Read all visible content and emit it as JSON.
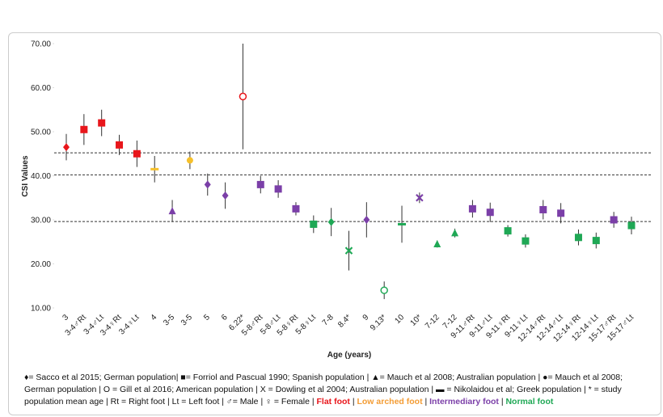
{
  "chart_data": {
    "type": "errorbar-dot",
    "y_label": "CSI Values",
    "x_label": "Age (years)",
    "ylim": [
      10,
      70
    ],
    "yticks": [
      {
        "value": 10,
        "label": "10.00"
      },
      {
        "value": 20,
        "label": "20.00"
      },
      {
        "value": 30,
        "label": "30.00"
      },
      {
        "value": 40,
        "label": "40.00"
      },
      {
        "value": 50,
        "label": "50.00"
      },
      {
        "value": 60,
        "label": "60.00"
      },
      {
        "value": 70,
        "label": "70.00"
      }
    ],
    "reference_lines": [
      45.2,
      40.2,
      29.6
    ],
    "categories": [
      "3",
      "3-4♂Rt",
      "3-4♂Lt",
      "3-4♀Rt",
      "3-4♀Lt",
      "4",
      "3-5",
      "3-5",
      "5",
      "6",
      "6.22*",
      "5-8♂Rt",
      "5-8♂Lt",
      "5-8♀Rt",
      "5-8♀Lt",
      "7-8",
      "8.4*",
      "9",
      "9.13*",
      "10",
      "10*",
      "7-12",
      "7-12",
      "9-11♂Rt",
      "9-11♂Lt",
      "9-11♀Rt",
      "9-11♀Lt",
      "12-14♂Rt",
      "12-14♂Lt",
      "12-14♀Rt",
      "12-14♀Lt",
      "15-17♂Rt",
      "15-17♂Lt"
    ],
    "values": [
      46.5,
      50.5,
      52,
      47,
      45,
      41.5,
      32,
      43.5,
      38,
      35.5,
      58,
      38,
      37,
      32.5,
      29,
      29.5,
      23,
      30,
      14,
      29,
      35,
      24.5,
      27,
      32.5,
      31.7,
      27.5,
      25.2,
      32.3,
      31.5,
      26,
      25.3,
      30,
      28.7
    ],
    "errors": [
      3,
      3.5,
      3,
      2.3,
      3,
      3,
      2.5,
      2,
      2.5,
      3,
      12,
      2,
      2,
      1.5,
      2,
      3.2,
      4.5,
      4,
      2,
      4.2,
      1.2,
      0.8,
      1,
      2,
      2.2,
      1.3,
      1.5,
      2.2,
      2.3,
      1.8,
      1.8,
      1.8,
      2
    ],
    "markers": [
      "diamond",
      "square",
      "square",
      "square",
      "square",
      "dash",
      "triangle",
      "circle",
      "diamond",
      "diamond",
      "open-circle",
      "square",
      "square",
      "square",
      "square",
      "diamond",
      "x",
      "diamond",
      "open-circle",
      "dash",
      "x",
      "triangle",
      "triangle",
      "square",
      "square",
      "square",
      "square",
      "square",
      "square",
      "square",
      "square",
      "square",
      "square"
    ],
    "colors": [
      "#e8161b",
      "#e8161b",
      "#e8161b",
      "#e8161b",
      "#e8161b",
      "#f6c02a",
      "#7b3fa8",
      "#f6c02a",
      "#7b3fa8",
      "#7b3fa8",
      "#e8161b",
      "#7b3fa8",
      "#7b3fa8",
      "#7b3fa8",
      "#1fa855",
      "#1fa855",
      "#1fa855",
      "#7b3fa8",
      "#1fa855",
      "#1fa855",
      "#7b3fa8",
      "#1fa855",
      "#1fa855",
      "#7b3fa8",
      "#7b3fa8",
      "#1fa855",
      "#1fa855",
      "#7b3fa8",
      "#7b3fa8",
      "#1fa855",
      "#1fa855",
      "#7b3fa8",
      "#1fa855"
    ],
    "note": [
      {
        "text": "♦= Sacco et al 2015; German population| ■= Forriol and Pascual 1990; Spanish population | ▲= Mauch et al 2008; Australian population | ●= Mauch et al 2008; German population | O = Gill et al 2016; American population | X = Dowling et al 2004; Australian population | ▬ = Nikolaidou et al; Greek population | * = study population mean age | Rt = Right foot | Lt = Left foot | ♂= Male | ♀ = Female | "
      },
      {
        "text": "Flat foot",
        "color": "#e8161b"
      },
      {
        "text": " | "
      },
      {
        "text": "Low arched foot",
        "color": "#f39c34"
      },
      {
        "text": " | "
      },
      {
        "text": "Intermediary foot",
        "color": "#7b3fa8"
      },
      {
        "text": " | "
      },
      {
        "text": "Normal foot",
        "color": "#1fa855"
      }
    ]
  }
}
